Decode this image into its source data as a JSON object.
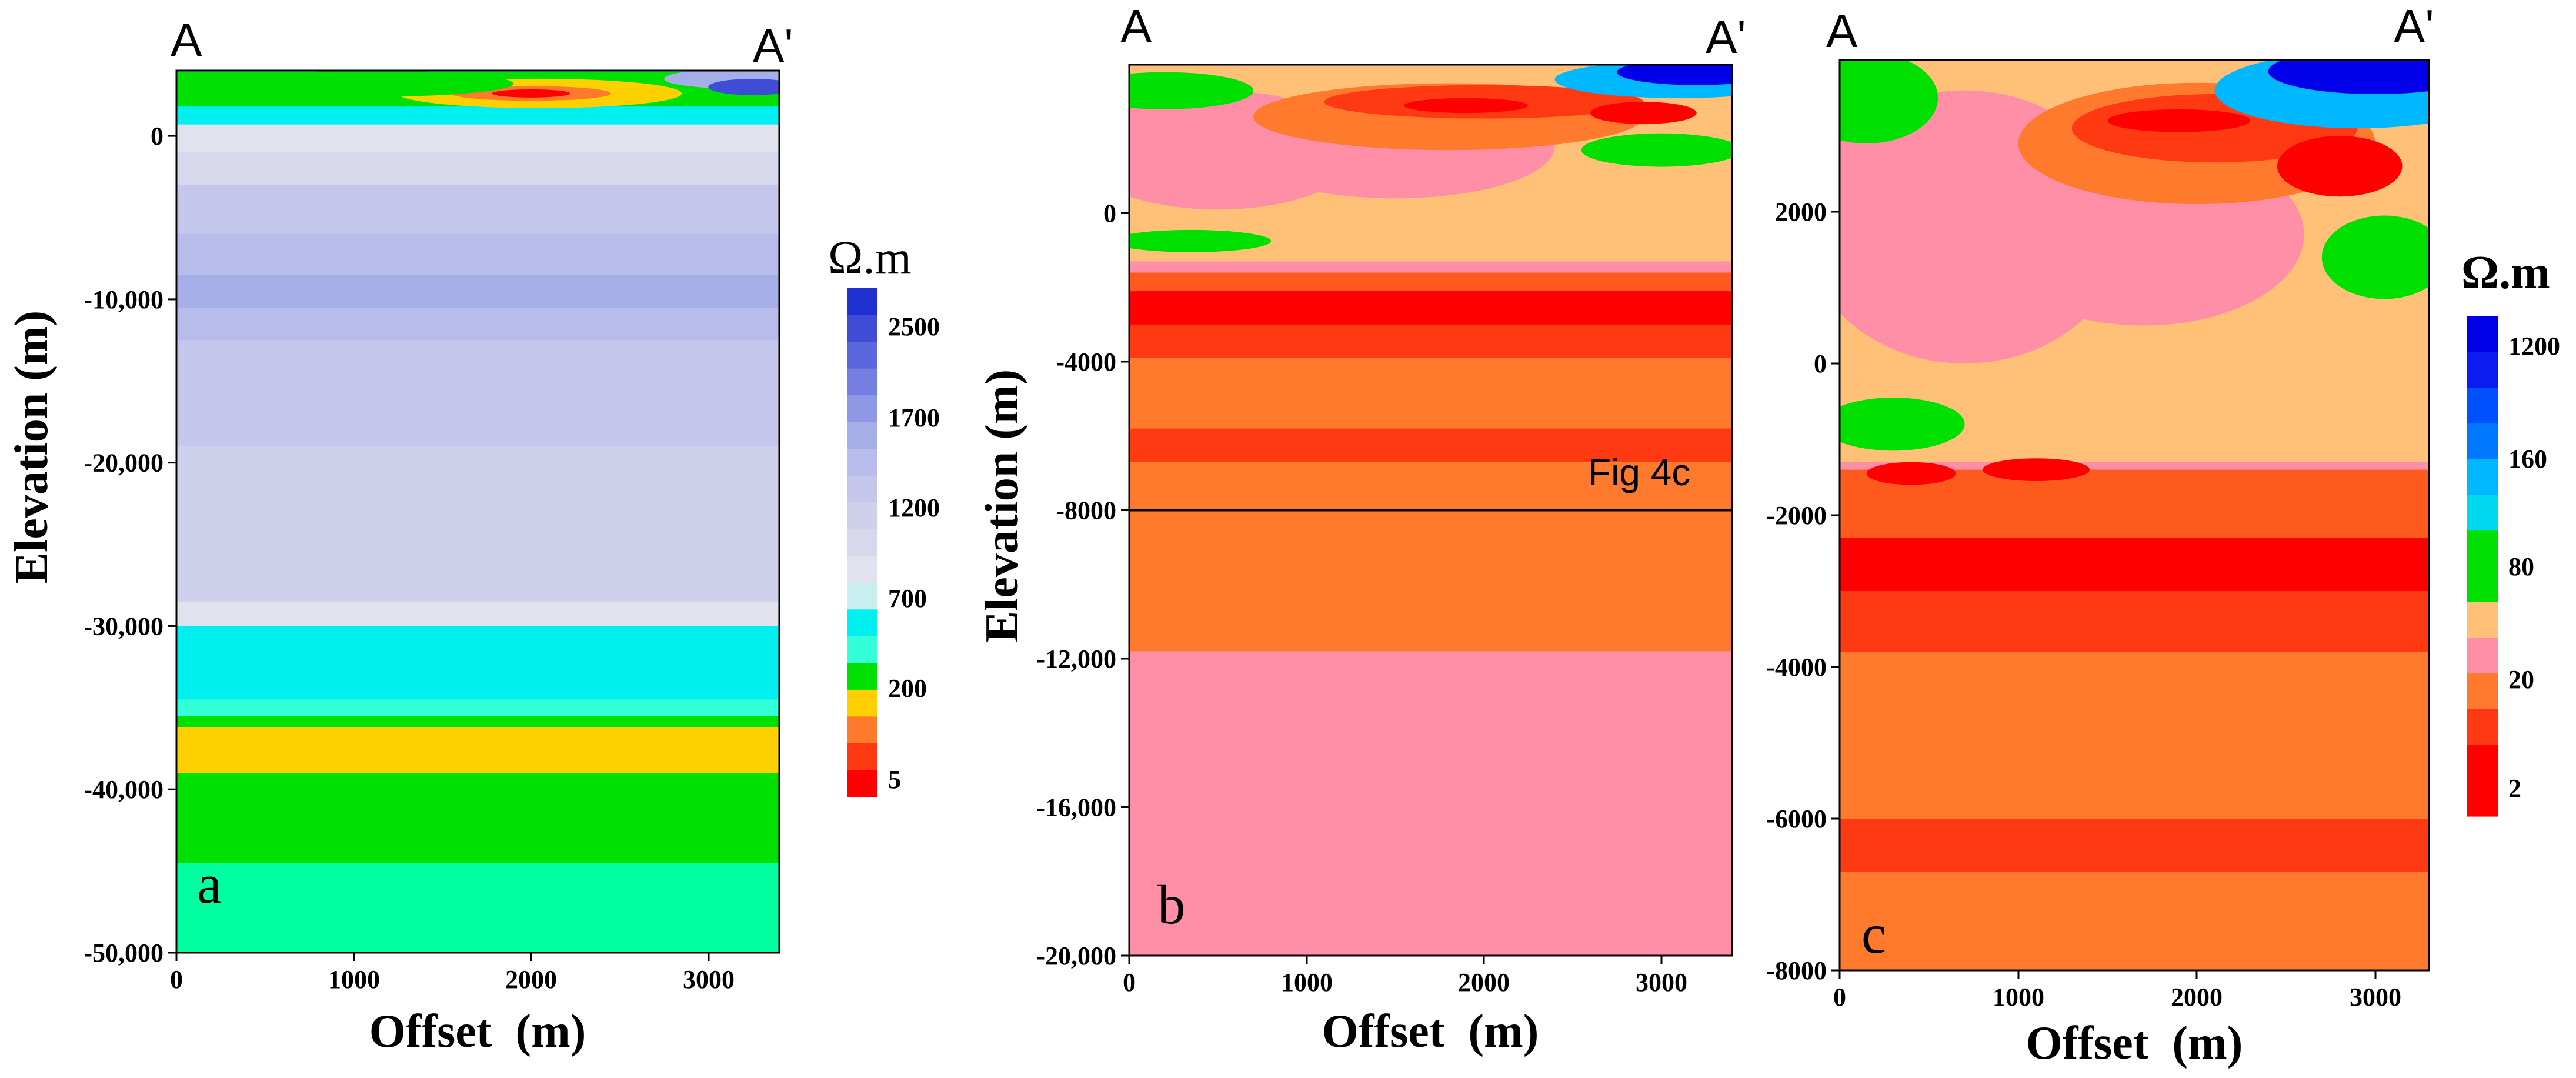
{
  "figure": {
    "colors": {
      "red": "#ff0000",
      "red_orange": "#ff3a12",
      "orange_red": "#ff5a1e",
      "orange": "#ff7a2c",
      "pink": "#ff8fa6",
      "peach": "#ffc078",
      "green": "#00e000",
      "spring": "#00ffa0",
      "aqua": "#33ffd8",
      "cyan": "#00f0f0",
      "sky": "#00b8ff",
      "blue": "#0050ff",
      "navy": "#0000e8",
      "yellow": "#ffd000",
      "pale": "#e2e2ee",
      "pale2": "#d8d8ec",
      "lav1": "#cfd0ec",
      "lav2": "#c4c6ec",
      "lav3": "#b8bcea",
      "lav4": "#a6aee8",
      "lav5": "#8f98e4",
      "lav6": "#747fe0",
      "lav7": "#5a66dc",
      "lav8": "#3e4cd6",
      "lav9": "#2030d0"
    },
    "panels": [
      {
        "id": "a",
        "panel_label": "a",
        "profile_start": "A",
        "profile_end": "A'",
        "xlabel": "Offset  (m)",
        "ylabel": "Elevation (m)",
        "x_ticks": [
          "0",
          "1000",
          "2000",
          "3000"
        ],
        "y_ticks": [
          "0",
          "-10,000",
          "-20,000",
          "-30,000",
          "-40,000",
          "-50,000"
        ],
        "colorbar_title": "Ω.m",
        "colorbar_labels": [
          "2500",
          "1700",
          "1200",
          "700",
          "200",
          "5"
        ]
      },
      {
        "id": "b",
        "panel_label": "b",
        "profile_start": "A",
        "profile_end": "A'",
        "xlabel": "Offset  (m)",
        "ylabel": "Elevation (m)",
        "x_ticks": [
          "0",
          "1000",
          "2000",
          "3000"
        ],
        "y_ticks": [
          "0",
          "-4000",
          "-8000",
          "-12,000",
          "-16,000",
          "-20,000"
        ],
        "inset_label": "Fig 4c"
      },
      {
        "id": "c",
        "panel_label": "c",
        "profile_start": "A",
        "profile_end": "A'",
        "xlabel": "Offset  (m)",
        "ylabel": "",
        "x_ticks": [
          "0",
          "1000",
          "2000",
          "3000"
        ],
        "y_ticks": [
          "2000",
          "0",
          "-2000",
          "-4000",
          "-6000",
          "-8000"
        ],
        "colorbar_title": "Ω.m",
        "colorbar_labels": [
          "1200",
          "160",
          "80",
          "20",
          "2"
        ]
      }
    ]
  },
  "chart_data": [
    {
      "type": "heatmap",
      "title": "",
      "panel": "a",
      "xlabel": "Offset  (m)",
      "ylabel": "Elevation (m)",
      "xlim": [
        0,
        3400
      ],
      "ylim": [
        -50000,
        4000
      ],
      "colorbar": {
        "unit": "Ω.m",
        "ticks": [
          2500,
          1700,
          1200,
          700,
          200,
          5
        ]
      },
      "layers": [
        {
          "top": 4000,
          "bottom": 2200,
          "color": "cyan"
        },
        {
          "top": 2200,
          "bottom": 700,
          "color": "cyan"
        },
        {
          "top": 700,
          "bottom": -1000,
          "color": "pale"
        },
        {
          "top": -1000,
          "bottom": -3000,
          "color": "pale2"
        },
        {
          "top": -3000,
          "bottom": -6000,
          "color": "lav2"
        },
        {
          "top": -6000,
          "bottom": -8500,
          "color": "lav3"
        },
        {
          "top": -8500,
          "bottom": -10500,
          "color": "lav4"
        },
        {
          "top": -10500,
          "bottom": -12500,
          "color": "lav3"
        },
        {
          "top": -12500,
          "bottom": -19000,
          "color": "lav2"
        },
        {
          "top": -19000,
          "bottom": -28500,
          "color": "lav1"
        },
        {
          "top": -28500,
          "bottom": -30000,
          "color": "pale"
        },
        {
          "top": -30000,
          "bottom": -34500,
          "color": "cyan"
        },
        {
          "top": -34500,
          "bottom": -35500,
          "color": "aqua"
        },
        {
          "top": -35500,
          "bottom": -36200,
          "color": "green"
        },
        {
          "top": -36200,
          "bottom": -39000,
          "color": "yellow"
        },
        {
          "top": -39000,
          "bottom": -44500,
          "color": "green"
        },
        {
          "top": -44500,
          "bottom": -50000,
          "color": "spring"
        }
      ],
      "bodies": [
        {
          "shape": "band",
          "x0": 0,
          "x1": 3400,
          "y0": 3900,
          "y1": 1800,
          "color": "green"
        },
        {
          "shape": "ellipse",
          "cx": 2050,
          "cy": 2600,
          "rx": 800,
          "ry": 900,
          "color": "yellow"
        },
        {
          "shape": "ellipse",
          "cx": 2000,
          "cy": 2600,
          "rx": 450,
          "ry": 450,
          "color": "orange"
        },
        {
          "shape": "ellipse",
          "cx": 2000,
          "cy": 2600,
          "rx": 220,
          "ry": 250,
          "color": "red"
        },
        {
          "shape": "ellipse",
          "cx": 1100,
          "cy": 3200,
          "rx": 800,
          "ry": 800,
          "color": "green"
        },
        {
          "shape": "ellipse",
          "cx": 3150,
          "cy": 3500,
          "rx": 400,
          "ry": 600,
          "color": "lav4"
        },
        {
          "shape": "ellipse",
          "cx": 3250,
          "cy": 3000,
          "rx": 250,
          "ry": 500,
          "color": "lav8"
        }
      ]
    },
    {
      "type": "heatmap",
      "title": "",
      "panel": "b",
      "xlabel": "Offset  (m)",
      "ylabel": "Elevation (m)",
      "xlim": [
        0,
        3400
      ],
      "ylim": [
        -20000,
        4000
      ],
      "annotation": {
        "label": "Fig 4c",
        "box_bottom": -8000
      },
      "layers": [
        {
          "top": 4000,
          "bottom": -500,
          "color": "peach"
        },
        {
          "top": -500,
          "bottom": -1300,
          "color": "peach"
        },
        {
          "top": -1300,
          "bottom": -1600,
          "color": "pink"
        },
        {
          "top": -1600,
          "bottom": -2100,
          "color": "orange_red"
        },
        {
          "top": -2100,
          "bottom": -3000,
          "color": "red"
        },
        {
          "top": -3000,
          "bottom": -3900,
          "color": "red_orange"
        },
        {
          "top": -3900,
          "bottom": -5800,
          "color": "orange"
        },
        {
          "top": -5800,
          "bottom": -6700,
          "color": "red_orange"
        },
        {
          "top": -6700,
          "bottom": -11800,
          "color": "orange"
        },
        {
          "top": -11800,
          "bottom": -20000,
          "color": "pink"
        }
      ],
      "bodies": [
        {
          "shape": "ellipse",
          "cx": 500,
          "cy": 1700,
          "rx": 800,
          "ry": 1600,
          "color": "pink"
        },
        {
          "shape": "ellipse",
          "cx": 1500,
          "cy": 1800,
          "rx": 900,
          "ry": 1400,
          "color": "pink"
        },
        {
          "shape": "ellipse",
          "cx": 350,
          "cy": -750,
          "rx": 450,
          "ry": 300,
          "color": "green"
        },
        {
          "shape": "ellipse",
          "cx": 1800,
          "cy": 2600,
          "rx": 1100,
          "ry": 900,
          "color": "orange"
        },
        {
          "shape": "ellipse",
          "cx": 2000,
          "cy": 3000,
          "rx": 900,
          "ry": 450,
          "color": "red_orange"
        },
        {
          "shape": "ellipse",
          "cx": 2900,
          "cy": 2700,
          "rx": 300,
          "ry": 300,
          "color": "red"
        },
        {
          "shape": "ellipse",
          "cx": 1900,
          "cy": 2900,
          "rx": 350,
          "ry": 200,
          "color": "red"
        },
        {
          "shape": "ellipse",
          "cx": 3000,
          "cy": 1700,
          "rx": 450,
          "ry": 450,
          "color": "green"
        },
        {
          "shape": "ellipse",
          "cx": 200,
          "cy": 3300,
          "rx": 500,
          "ry": 500,
          "color": "green"
        },
        {
          "shape": "ellipse",
          "cx": 3100,
          "cy": 3600,
          "rx": 700,
          "ry": 500,
          "color": "sky"
        },
        {
          "shape": "ellipse",
          "cx": 3200,
          "cy": 3800,
          "rx": 450,
          "ry": 350,
          "color": "navy"
        }
      ]
    },
    {
      "type": "heatmap",
      "title": "",
      "panel": "c",
      "xlabel": "Offset  (m)",
      "ylabel": "",
      "xlim": [
        0,
        3300
      ],
      "ylim": [
        -8000,
        4000
      ],
      "colorbar": {
        "unit": "Ω.m",
        "ticks": [
          1200,
          160,
          80,
          20,
          2
        ]
      },
      "layers": [
        {
          "top": 4000,
          "bottom": -1300,
          "color": "peach"
        },
        {
          "top": -1300,
          "bottom": -1400,
          "color": "pink"
        },
        {
          "top": -1400,
          "bottom": -2300,
          "color": "orange_red"
        },
        {
          "top": -2300,
          "bottom": -3000,
          "color": "red"
        },
        {
          "top": -3000,
          "bottom": -3800,
          "color": "red_orange"
        },
        {
          "top": -3800,
          "bottom": -6000,
          "color": "orange"
        },
        {
          "top": -6000,
          "bottom": -6700,
          "color": "red_orange"
        },
        {
          "top": -6700,
          "bottom": -8000,
          "color": "orange"
        }
      ],
      "bodies": [
        {
          "shape": "ellipse",
          "cx": 700,
          "cy": 1800,
          "rx": 900,
          "ry": 1800,
          "color": "pink"
        },
        {
          "shape": "ellipse",
          "cx": 1700,
          "cy": 1700,
          "rx": 900,
          "ry": 1200,
          "color": "pink"
        },
        {
          "shape": "ellipse",
          "cx": 300,
          "cy": -800,
          "rx": 400,
          "ry": 350,
          "color": "green"
        },
        {
          "shape": "ellipse",
          "cx": 1100,
          "cy": -1400,
          "rx": 300,
          "ry": 150,
          "color": "red"
        },
        {
          "shape": "ellipse",
          "cx": 400,
          "cy": -1450,
          "rx": 250,
          "ry": 150,
          "color": "red"
        },
        {
          "shape": "ellipse",
          "cx": 2000,
          "cy": 2900,
          "rx": 1000,
          "ry": 800,
          "color": "orange"
        },
        {
          "shape": "ellipse",
          "cx": 2100,
          "cy": 3100,
          "rx": 800,
          "ry": 450,
          "color": "red_orange"
        },
        {
          "shape": "ellipse",
          "cx": 2800,
          "cy": 2600,
          "rx": 350,
          "ry": 400,
          "color": "red"
        },
        {
          "shape": "ellipse",
          "cx": 1900,
          "cy": 3200,
          "rx": 400,
          "ry": 150,
          "color": "red"
        },
        {
          "shape": "ellipse",
          "cx": 3050,
          "cy": 1400,
          "rx": 350,
          "ry": 550,
          "color": "green"
        },
        {
          "shape": "ellipse",
          "cx": 150,
          "cy": 3500,
          "rx": 400,
          "ry": 600,
          "color": "green"
        },
        {
          "shape": "ellipse",
          "cx": 2900,
          "cy": 3600,
          "rx": 800,
          "ry": 500,
          "color": "sky"
        },
        {
          "shape": "ellipse",
          "cx": 3000,
          "cy": 3850,
          "rx": 600,
          "ry": 300,
          "color": "navy"
        }
      ]
    }
  ]
}
